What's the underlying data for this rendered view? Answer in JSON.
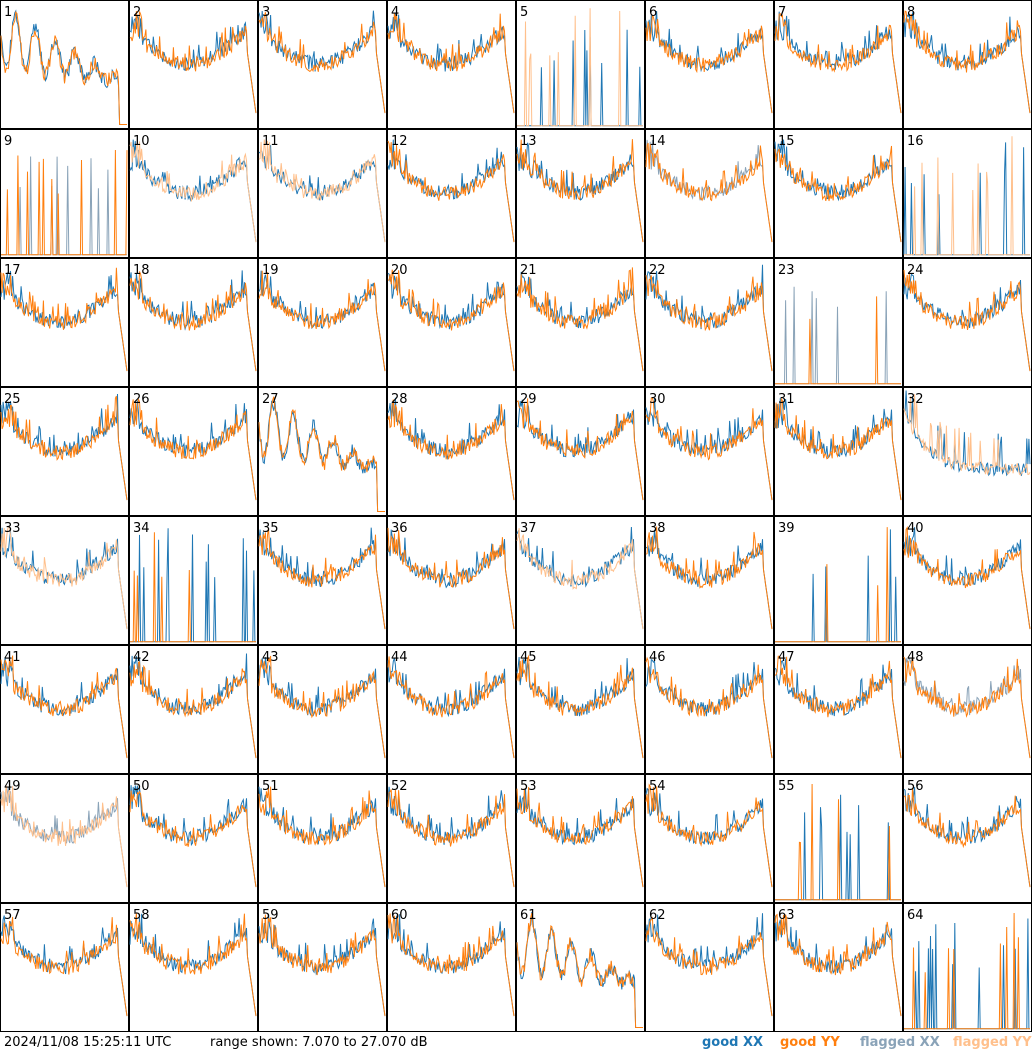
{
  "footer": {
    "timestamp": "2024/11/08 15:25:11 UTC",
    "range_label": "range shown: 7.070 to 27.070 dB"
  },
  "legend": [
    {
      "id": "good_xx",
      "label": "good XX",
      "color": "#1f77b4"
    },
    {
      "id": "good_yy",
      "label": "good YY",
      "color": "#ff7f0e"
    },
    {
      "id": "flagged_xx",
      "label": "flagged XX",
      "color": "#8aa3b8"
    },
    {
      "id": "flagged_yy",
      "label": "flagged YY",
      "color": "#ffc08c"
    }
  ],
  "chart_data": {
    "type": "line",
    "layout": "8x8 small multiples",
    "ylim": [
      7.07,
      27.07
    ],
    "yunit": "dB",
    "panels": [
      {
        "n": 1,
        "xx": "good",
        "yy": "good",
        "shape": "oscillatory"
      },
      {
        "n": 2,
        "xx": "good",
        "yy": "good",
        "shape": "bowl"
      },
      {
        "n": 3,
        "xx": "good",
        "yy": "good",
        "shape": "bowl"
      },
      {
        "n": 4,
        "xx": "good",
        "yy": "good",
        "shape": "bowl"
      },
      {
        "n": 5,
        "xx": "good",
        "yy": "flagged",
        "shape": "spikes"
      },
      {
        "n": 6,
        "xx": "good",
        "yy": "good",
        "shape": "bowl"
      },
      {
        "n": 7,
        "xx": "good",
        "yy": "good",
        "shape": "bowl"
      },
      {
        "n": 8,
        "xx": "good",
        "yy": "good",
        "shape": "bowl"
      },
      {
        "n": 9,
        "xx": "flagged",
        "yy": "good",
        "shape": "spikes"
      },
      {
        "n": 10,
        "xx": "good",
        "yy": "flagged",
        "shape": "bowl"
      },
      {
        "n": 11,
        "xx": "good",
        "yy": "flagged",
        "shape": "bowl"
      },
      {
        "n": 12,
        "xx": "good",
        "yy": "good",
        "shape": "bowl"
      },
      {
        "n": 13,
        "xx": "good",
        "yy": "good",
        "shape": "bowl"
      },
      {
        "n": 14,
        "xx": "flagged",
        "yy": "good",
        "shape": "bowl"
      },
      {
        "n": 15,
        "xx": "good",
        "yy": "good",
        "shape": "bowl"
      },
      {
        "n": 16,
        "xx": "good",
        "yy": "flagged",
        "shape": "spikes"
      },
      {
        "n": 17,
        "xx": "good",
        "yy": "good",
        "shape": "bowl"
      },
      {
        "n": 18,
        "xx": "good",
        "yy": "good",
        "shape": "bowl"
      },
      {
        "n": 19,
        "xx": "good",
        "yy": "good",
        "shape": "bowl"
      },
      {
        "n": 20,
        "xx": "good",
        "yy": "good",
        "shape": "bowl"
      },
      {
        "n": 21,
        "xx": "good",
        "yy": "good",
        "shape": "bowl"
      },
      {
        "n": 22,
        "xx": "good",
        "yy": "good",
        "shape": "bowl"
      },
      {
        "n": 23,
        "xx": "flagged",
        "yy": "good",
        "shape": "spikes"
      },
      {
        "n": 24,
        "xx": "good",
        "yy": "good",
        "shape": "bowl"
      },
      {
        "n": 25,
        "xx": "good",
        "yy": "good",
        "shape": "bowl"
      },
      {
        "n": 26,
        "xx": "good",
        "yy": "good",
        "shape": "bowl"
      },
      {
        "n": 27,
        "xx": "good",
        "yy": "good",
        "shape": "oscillatory"
      },
      {
        "n": 28,
        "xx": "good",
        "yy": "good",
        "shape": "bowl"
      },
      {
        "n": 29,
        "xx": "good",
        "yy": "good",
        "shape": "bowl"
      },
      {
        "n": 30,
        "xx": "good",
        "yy": "good",
        "shape": "bowl"
      },
      {
        "n": 31,
        "xx": "good",
        "yy": "good",
        "shape": "bowl"
      },
      {
        "n": 32,
        "xx": "good",
        "yy": "flagged",
        "shape": "noisy"
      },
      {
        "n": 33,
        "xx": "good",
        "yy": "flagged",
        "shape": "bowl"
      },
      {
        "n": 34,
        "xx": "good",
        "yy": "good",
        "shape": "spikes"
      },
      {
        "n": 35,
        "xx": "good",
        "yy": "good",
        "shape": "bowl"
      },
      {
        "n": 36,
        "xx": "good",
        "yy": "good",
        "shape": "bowl"
      },
      {
        "n": 37,
        "xx": "good",
        "yy": "flagged",
        "shape": "bowl"
      },
      {
        "n": 38,
        "xx": "good",
        "yy": "good",
        "shape": "bowl"
      },
      {
        "n": 39,
        "xx": "good",
        "yy": "good",
        "shape": "spikes"
      },
      {
        "n": 40,
        "xx": "good",
        "yy": "good",
        "shape": "bowl"
      },
      {
        "n": 41,
        "xx": "good",
        "yy": "good",
        "shape": "bowl"
      },
      {
        "n": 42,
        "xx": "good",
        "yy": "good",
        "shape": "bowl"
      },
      {
        "n": 43,
        "xx": "good",
        "yy": "good",
        "shape": "bowl"
      },
      {
        "n": 44,
        "xx": "good",
        "yy": "good",
        "shape": "bowl"
      },
      {
        "n": 45,
        "xx": "good",
        "yy": "good",
        "shape": "bowl"
      },
      {
        "n": 46,
        "xx": "good",
        "yy": "good",
        "shape": "bowl"
      },
      {
        "n": 47,
        "xx": "good",
        "yy": "good",
        "shape": "bowl"
      },
      {
        "n": 48,
        "xx": "flagged",
        "yy": "good",
        "shape": "bowl"
      },
      {
        "n": 49,
        "xx": "flagged",
        "yy": "flagged",
        "shape": "bowl"
      },
      {
        "n": 50,
        "xx": "good",
        "yy": "good",
        "shape": "bowl"
      },
      {
        "n": 51,
        "xx": "good",
        "yy": "good",
        "shape": "bowl"
      },
      {
        "n": 52,
        "xx": "good",
        "yy": "good",
        "shape": "bowl"
      },
      {
        "n": 53,
        "xx": "good",
        "yy": "good",
        "shape": "bowl"
      },
      {
        "n": 54,
        "xx": "good",
        "yy": "good",
        "shape": "bowl"
      },
      {
        "n": 55,
        "xx": "good",
        "yy": "good",
        "shape": "spikes"
      },
      {
        "n": 56,
        "xx": "good",
        "yy": "good",
        "shape": "bowl"
      },
      {
        "n": 57,
        "xx": "good",
        "yy": "good",
        "shape": "bowl"
      },
      {
        "n": 58,
        "xx": "good",
        "yy": "good",
        "shape": "bowl"
      },
      {
        "n": 59,
        "xx": "good",
        "yy": "good",
        "shape": "bowl"
      },
      {
        "n": 60,
        "xx": "good",
        "yy": "good",
        "shape": "bowl"
      },
      {
        "n": 61,
        "xx": "good",
        "yy": "good",
        "shape": "oscillatory"
      },
      {
        "n": 62,
        "xx": "good",
        "yy": "good",
        "shape": "bowl"
      },
      {
        "n": 63,
        "xx": "good",
        "yy": "good",
        "shape": "bowl"
      },
      {
        "n": 64,
        "xx": "good",
        "yy": "good",
        "shape": "spikes"
      }
    ]
  }
}
